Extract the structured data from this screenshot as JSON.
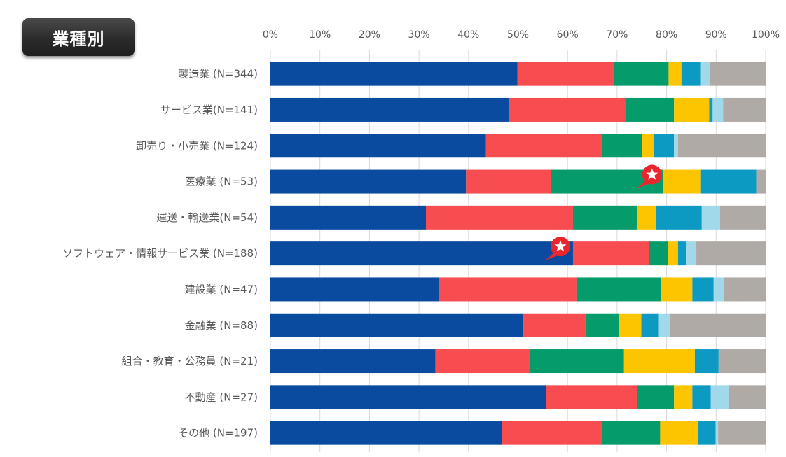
{
  "badge": {
    "title": "業種別"
  },
  "chart_data": {
    "type": "bar",
    "orientation": "horizontal",
    "stacked": true,
    "percent": true,
    "title": "業種別",
    "xlim": [
      0,
      100
    ],
    "x_ticks": [
      "0%",
      "10%",
      "20%",
      "30%",
      "40%",
      "50%",
      "60%",
      "70%",
      "80%",
      "90%",
      "100%"
    ],
    "grid": true,
    "legend": "none",
    "categories": [
      "製造業 (N=344)",
      "サービス業(N=141)",
      "卸売り・小売業 (N=124)",
      "医療業 (N=53)",
      "運送・輸送業(N=54)",
      "ソフトウェア・情報サービス業 (N=188)",
      "建設業 (N=47)",
      "金融業 (N=88)",
      "組合・教育・公務員 (N=21)",
      "不動産 (N=27)",
      "その他 (N=197)"
    ],
    "series": [
      {
        "name": "series1",
        "color": "#0a4ba0",
        "values": [
          49.9,
          48.2,
          43.5,
          39.5,
          31.4,
          61.1,
          34.0,
          51.1,
          33.3,
          55.6,
          46.7
        ]
      },
      {
        "name": "series2",
        "color": "#f74c50",
        "values": [
          19.5,
          23.4,
          23.4,
          17.1,
          29.7,
          15.4,
          27.8,
          12.5,
          19.1,
          18.5,
          20.3
        ]
      },
      {
        "name": "series3",
        "color": "#069b6b",
        "values": [
          11.0,
          9.9,
          8.1,
          22.7,
          13.0,
          3.7,
          17.0,
          6.8,
          19.0,
          7.4,
          11.7
        ]
      },
      {
        "name": "series4",
        "color": "#fdc500",
        "values": [
          2.6,
          7.1,
          2.5,
          7.5,
          3.7,
          2.1,
          6.4,
          4.5,
          14.3,
          3.7,
          7.6
        ]
      },
      {
        "name": "series5",
        "color": "#0c99c2",
        "values": [
          3.8,
          0.7,
          4.0,
          11.3,
          9.3,
          1.6,
          4.3,
          3.4,
          4.8,
          3.7,
          3.6
        ]
      },
      {
        "name": "series6",
        "color": "#a1d9ea",
        "values": [
          2.0,
          2.1,
          0.8,
          0.0,
          3.7,
          2.1,
          2.1,
          2.3,
          0.0,
          3.7,
          0.5
        ]
      },
      {
        "name": "series7",
        "color": "#b0aaa6",
        "values": [
          11.2,
          8.6,
          17.7,
          1.9,
          9.2,
          14.0,
          8.4,
          19.4,
          9.5,
          7.4,
          9.6
        ]
      }
    ],
    "annotations": [
      {
        "category": "医療業 (N=53)",
        "at_percent": 74.5,
        "marker": "star-callout"
      },
      {
        "category": "ソフトウェア・情報サービス業 (N=188)",
        "at_percent": 56.0,
        "marker": "star-callout"
      }
    ]
  }
}
